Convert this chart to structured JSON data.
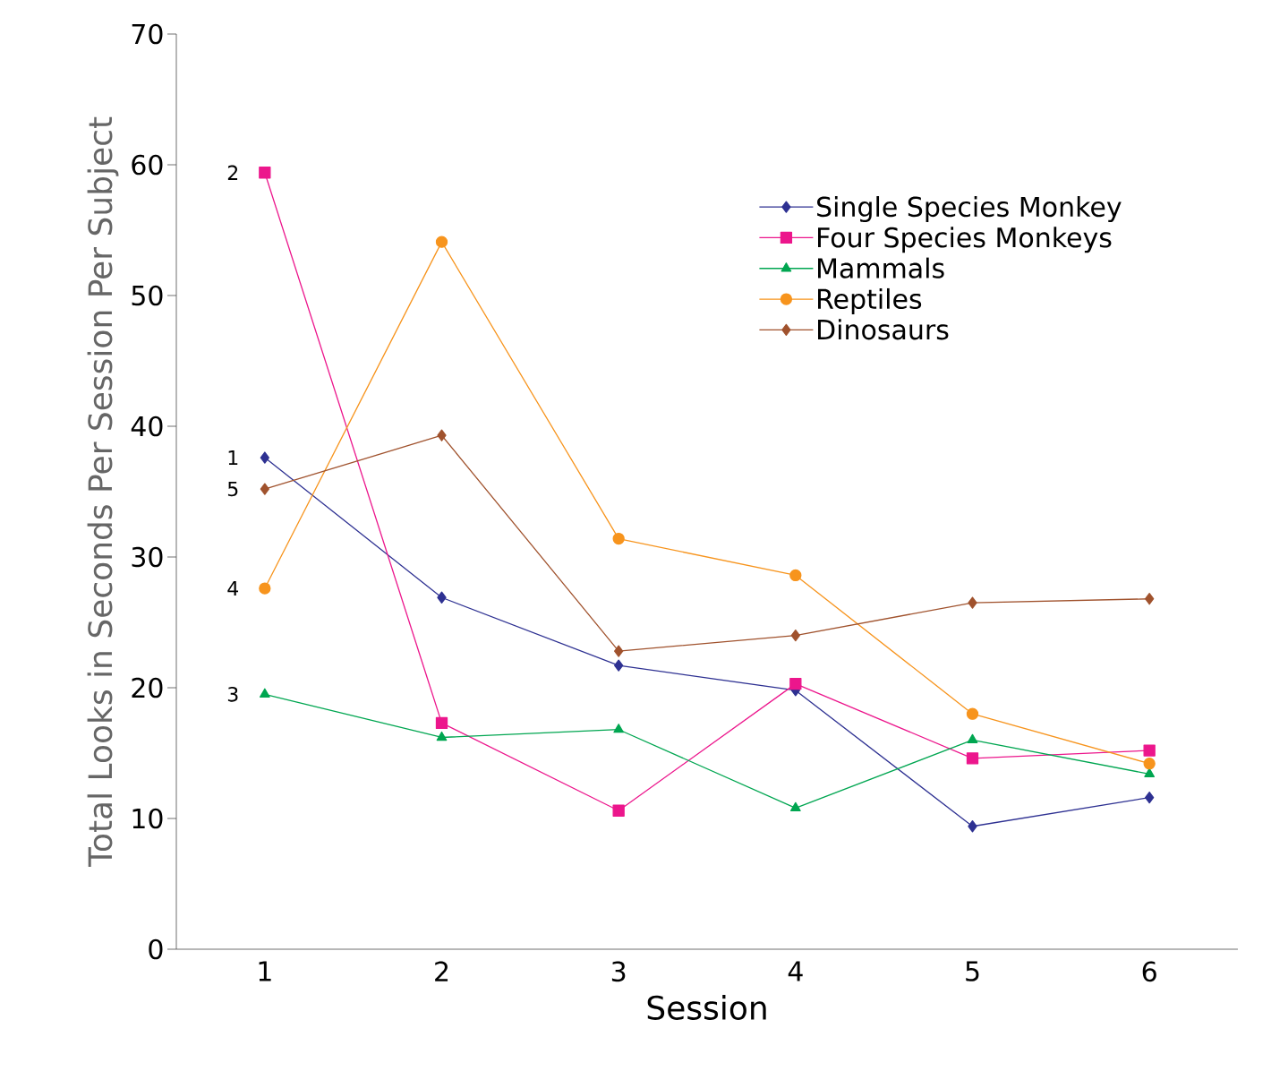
{
  "chart_data": {
    "type": "line",
    "xlabel": "Session",
    "ylabel": "Total Looks in Seconds Per Session Per Subject",
    "categories": [
      "1",
      "2",
      "3",
      "4",
      "5",
      "6"
    ],
    "ylim": [
      0,
      70
    ],
    "yticks": [
      0,
      10,
      20,
      30,
      40,
      50,
      60,
      70
    ],
    "grid": false,
    "legend": "top right",
    "series": [
      {
        "name": "Single Species Monkey",
        "color": "#2e3192",
        "marker": "diamond",
        "values": [
          37.6,
          26.9,
          21.7,
          19.8,
          9.4,
          11.6
        ]
      },
      {
        "name": "Four Species Monkeys",
        "color": "#ec168c",
        "marker": "square",
        "values": [
          59.4,
          17.3,
          10.6,
          20.3,
          14.6,
          15.2
        ]
      },
      {
        "name": "Mammals",
        "color": "#00a651",
        "marker": "triangle",
        "values": [
          19.5,
          16.2,
          16.8,
          10.8,
          16.0,
          13.4
        ]
      },
      {
        "name": "Reptiles",
        "color": "#f7941d",
        "marker": "circle",
        "values": [
          27.6,
          54.1,
          31.4,
          28.6,
          18.0,
          14.2
        ]
      },
      {
        "name": "Dinosaurs",
        "color": "#a0522d",
        "marker": "diamond",
        "values": [
          35.2,
          39.3,
          22.8,
          24.0,
          26.5,
          26.8
        ]
      }
    ],
    "annotations": [
      {
        "text": "2",
        "x": "1",
        "y": 59.4
      },
      {
        "text": "1",
        "x": "1",
        "y": 37.6
      },
      {
        "text": "5",
        "x": "1",
        "y": 35.2
      },
      {
        "text": "4",
        "x": "1",
        "y": 27.6
      },
      {
        "text": "3",
        "x": "1",
        "y": 19.5
      }
    ]
  }
}
